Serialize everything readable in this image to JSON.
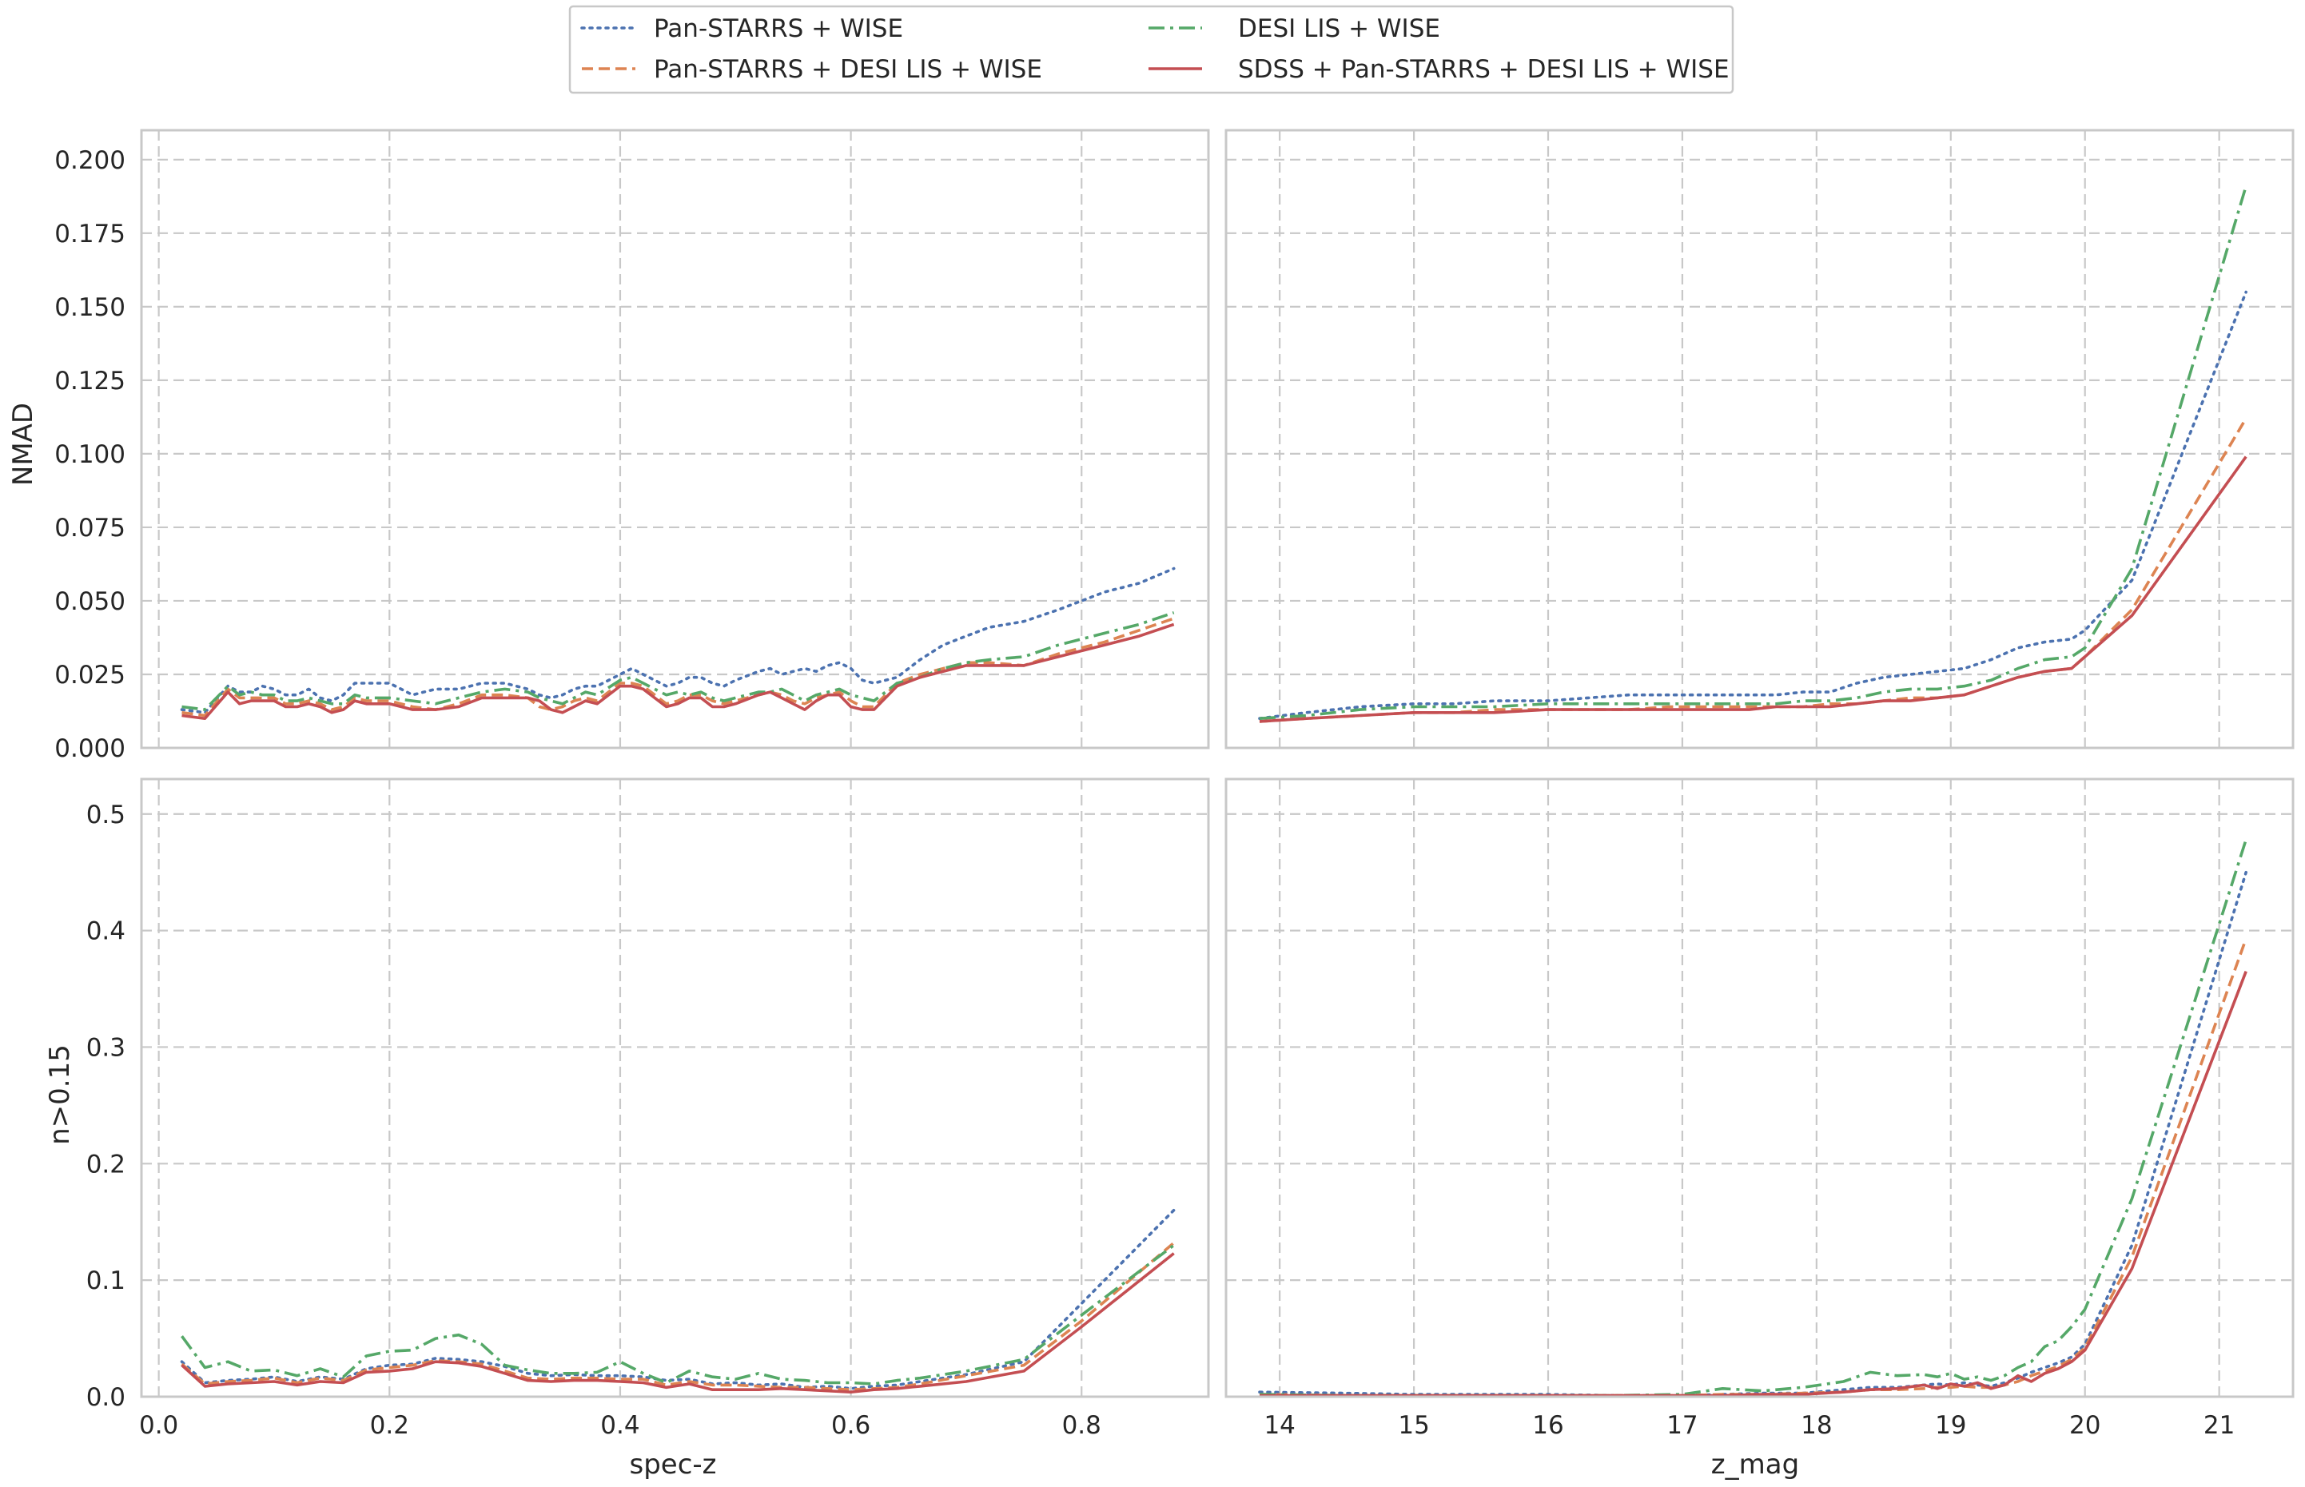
{
  "colors": {
    "ps_wise": "#4c72b0",
    "ps_desi_wise": "#dd8452",
    "desi_wise": "#55a868",
    "all": "#c44e52"
  },
  "legend": [
    {
      "key": "ps_wise",
      "label": "Pan-STARRS + WISE",
      "dash": "dotted"
    },
    {
      "key": "ps_desi_wise",
      "label": "Pan-STARRS + DESI LIS + WISE",
      "dash": "dashed"
    },
    {
      "key": "desi_wise",
      "label": "DESI LIS + WISE",
      "dash": "dashdot"
    },
    {
      "key": "all",
      "label": "SDSS + Pan-STARRS + DESI LIS + WISE",
      "dash": "solid"
    }
  ],
  "chart_data": [
    {
      "type": "line",
      "panel": "top-left",
      "xlabel": "",
      "ylabel": "NMAD",
      "xlim": [
        -0.015,
        0.91
      ],
      "ylim": [
        0,
        0.21
      ],
      "xticks": [
        0.0,
        0.2,
        0.4,
        0.6,
        0.8
      ],
      "yticks": [
        0.0,
        0.025,
        0.05,
        0.075,
        0.1,
        0.125,
        0.15,
        0.175,
        0.2
      ],
      "xtick_labels": [
        "",
        "",
        "",
        "",
        ""
      ],
      "ytick_labels": [
        "0.000",
        "0.025",
        "0.050",
        "0.075",
        "0.100",
        "0.125",
        "0.150",
        "0.175",
        "0.200"
      ],
      "grid": true,
      "x": [
        0.02,
        0.04,
        0.06,
        0.07,
        0.08,
        0.09,
        0.1,
        0.11,
        0.12,
        0.13,
        0.14,
        0.15,
        0.16,
        0.17,
        0.18,
        0.2,
        0.22,
        0.24,
        0.26,
        0.28,
        0.3,
        0.32,
        0.33,
        0.34,
        0.35,
        0.36,
        0.37,
        0.38,
        0.4,
        0.41,
        0.42,
        0.43,
        0.44,
        0.45,
        0.46,
        0.47,
        0.48,
        0.49,
        0.5,
        0.52,
        0.53,
        0.54,
        0.55,
        0.56,
        0.57,
        0.58,
        0.59,
        0.6,
        0.61,
        0.62,
        0.64,
        0.66,
        0.68,
        0.7,
        0.72,
        0.75,
        0.78,
        0.8,
        0.82,
        0.85,
        0.88
      ],
      "series": [
        {
          "name": "Pan-STARRS + WISE",
          "key": "ps_wise",
          "values": [
            0.013,
            0.012,
            0.021,
            0.019,
            0.019,
            0.021,
            0.02,
            0.018,
            0.018,
            0.02,
            0.017,
            0.016,
            0.018,
            0.022,
            0.022,
            0.022,
            0.018,
            0.02,
            0.02,
            0.022,
            0.022,
            0.02,
            0.018,
            0.017,
            0.018,
            0.02,
            0.021,
            0.021,
            0.025,
            0.027,
            0.025,
            0.023,
            0.021,
            0.022,
            0.024,
            0.024,
            0.022,
            0.021,
            0.023,
            0.026,
            0.027,
            0.025,
            0.026,
            0.027,
            0.026,
            0.028,
            0.029,
            0.027,
            0.023,
            0.022,
            0.024,
            0.03,
            0.035,
            0.038,
            0.041,
            0.043,
            0.047,
            0.05,
            0.053,
            0.056,
            0.061
          ]
        },
        {
          "name": "Pan-STARRS + DESI LIS + WISE",
          "key": "ps_desi_wise",
          "values": [
            0.012,
            0.011,
            0.02,
            0.017,
            0.017,
            0.017,
            0.017,
            0.015,
            0.015,
            0.016,
            0.015,
            0.013,
            0.014,
            0.017,
            0.016,
            0.016,
            0.014,
            0.013,
            0.015,
            0.018,
            0.018,
            0.017,
            0.014,
            0.013,
            0.014,
            0.016,
            0.017,
            0.016,
            0.022,
            0.022,
            0.021,
            0.018,
            0.015,
            0.016,
            0.018,
            0.018,
            0.016,
            0.015,
            0.016,
            0.018,
            0.019,
            0.018,
            0.016,
            0.015,
            0.017,
            0.018,
            0.019,
            0.016,
            0.014,
            0.014,
            0.022,
            0.025,
            0.027,
            0.029,
            0.029,
            0.028,
            0.032,
            0.034,
            0.036,
            0.04,
            0.044
          ]
        },
        {
          "name": "DESI LIS + WISE",
          "key": "desi_wise",
          "values": [
            0.014,
            0.013,
            0.021,
            0.018,
            0.019,
            0.018,
            0.018,
            0.016,
            0.016,
            0.017,
            0.016,
            0.015,
            0.015,
            0.018,
            0.017,
            0.017,
            0.016,
            0.015,
            0.017,
            0.019,
            0.02,
            0.019,
            0.017,
            0.016,
            0.015,
            0.017,
            0.019,
            0.018,
            0.023,
            0.024,
            0.022,
            0.02,
            0.018,
            0.019,
            0.018,
            0.019,
            0.017,
            0.016,
            0.017,
            0.019,
            0.019,
            0.02,
            0.018,
            0.016,
            0.018,
            0.019,
            0.02,
            0.018,
            0.017,
            0.016,
            0.022,
            0.024,
            0.027,
            0.029,
            0.03,
            0.031,
            0.035,
            0.037,
            0.039,
            0.042,
            0.046
          ]
        },
        {
          "name": "SDSS + Pan-STARRS + DESI LIS + WISE",
          "key": "all",
          "values": [
            0.011,
            0.01,
            0.019,
            0.015,
            0.016,
            0.016,
            0.016,
            0.014,
            0.014,
            0.015,
            0.014,
            0.012,
            0.013,
            0.016,
            0.015,
            0.015,
            0.013,
            0.013,
            0.014,
            0.017,
            0.017,
            0.017,
            0.016,
            0.013,
            0.012,
            0.014,
            0.016,
            0.015,
            0.021,
            0.021,
            0.02,
            0.017,
            0.014,
            0.015,
            0.017,
            0.017,
            0.014,
            0.014,
            0.015,
            0.018,
            0.019,
            0.017,
            0.015,
            0.013,
            0.016,
            0.018,
            0.018,
            0.014,
            0.013,
            0.013,
            0.021,
            0.024,
            0.026,
            0.028,
            0.028,
            0.028,
            0.031,
            0.033,
            0.035,
            0.038,
            0.042
          ]
        }
      ]
    },
    {
      "type": "line",
      "panel": "top-right",
      "xlabel": "",
      "ylabel": "",
      "xlim": [
        13.6,
        21.55
      ],
      "ylim": [
        0,
        0.21
      ],
      "xticks": [
        14,
        15,
        16,
        17,
        18,
        19,
        20,
        21
      ],
      "yticks": [
        0.0,
        0.025,
        0.05,
        0.075,
        0.1,
        0.125,
        0.15,
        0.175,
        0.2
      ],
      "xtick_labels": [
        "",
        "",
        "",
        "",
        "",
        "",
        "",
        ""
      ],
      "ytick_labels": [
        "",
        "",
        "",
        "",
        "",
        "",
        "",
        "",
        ""
      ],
      "grid": true,
      "x": [
        13.85,
        14.2,
        14.6,
        15.0,
        15.3,
        15.6,
        16.0,
        16.3,
        16.6,
        16.9,
        17.1,
        17.3,
        17.5,
        17.7,
        17.9,
        18.1,
        18.3,
        18.5,
        18.7,
        18.9,
        19.1,
        19.3,
        19.5,
        19.7,
        19.9,
        20.0,
        20.35,
        21.2
      ],
      "series": [
        {
          "name": "Pan-STARRS + WISE",
          "key": "ps_wise",
          "values": [
            0.01,
            0.012,
            0.014,
            0.015,
            0.015,
            0.016,
            0.016,
            0.017,
            0.018,
            0.018,
            0.018,
            0.018,
            0.018,
            0.018,
            0.019,
            0.019,
            0.022,
            0.024,
            0.025,
            0.026,
            0.027,
            0.03,
            0.034,
            0.036,
            0.037,
            0.04,
            0.057,
            0.155
          ]
        },
        {
          "name": "Pan-STARRS + DESI LIS + WISE",
          "key": "ps_desi_wise",
          "values": [
            0.009,
            0.01,
            0.011,
            0.012,
            0.012,
            0.013,
            0.013,
            0.013,
            0.013,
            0.014,
            0.014,
            0.014,
            0.014,
            0.014,
            0.014,
            0.015,
            0.015,
            0.016,
            0.017,
            0.017,
            0.018,
            0.021,
            0.024,
            0.026,
            0.027,
            0.031,
            0.047,
            0.112
          ]
        },
        {
          "name": "DESI LIS + WISE",
          "key": "desi_wise",
          "values": [
            0.01,
            0.011,
            0.013,
            0.014,
            0.014,
            0.014,
            0.015,
            0.015,
            0.015,
            0.015,
            0.015,
            0.015,
            0.015,
            0.015,
            0.016,
            0.016,
            0.017,
            0.019,
            0.02,
            0.02,
            0.021,
            0.023,
            0.027,
            0.03,
            0.031,
            0.034,
            0.061,
            0.191
          ]
        },
        {
          "name": "SDSS + Pan-STARRS + DESI LIS + WISE",
          "key": "all",
          "values": [
            0.009,
            0.01,
            0.011,
            0.012,
            0.012,
            0.012,
            0.013,
            0.013,
            0.013,
            0.013,
            0.013,
            0.013,
            0.013,
            0.014,
            0.014,
            0.014,
            0.015,
            0.016,
            0.016,
            0.017,
            0.018,
            0.021,
            0.024,
            0.026,
            0.027,
            0.031,
            0.045,
            0.099
          ]
        }
      ]
    },
    {
      "type": "line",
      "panel": "bottom-left",
      "xlabel": "spec-z",
      "ylabel": "n>0.15",
      "xlim": [
        -0.015,
        0.91
      ],
      "ylim": [
        0,
        0.53
      ],
      "xticks": [
        0.0,
        0.2,
        0.4,
        0.6,
        0.8
      ],
      "yticks": [
        0.0,
        0.1,
        0.2,
        0.3,
        0.4,
        0.5
      ],
      "xtick_labels": [
        "0.0",
        "0.2",
        "0.4",
        "0.6",
        "0.8"
      ],
      "ytick_labels": [
        "0.0",
        "0.1",
        "0.2",
        "0.3",
        "0.4",
        "0.5"
      ],
      "grid": true,
      "x": [
        0.02,
        0.04,
        0.06,
        0.08,
        0.1,
        0.12,
        0.14,
        0.16,
        0.18,
        0.2,
        0.22,
        0.24,
        0.26,
        0.28,
        0.3,
        0.32,
        0.34,
        0.36,
        0.38,
        0.4,
        0.42,
        0.44,
        0.46,
        0.48,
        0.5,
        0.52,
        0.54,
        0.56,
        0.58,
        0.6,
        0.62,
        0.64,
        0.66,
        0.7,
        0.75,
        0.8,
        0.88
      ],
      "series": [
        {
          "name": "Pan-STARRS + WISE",
          "key": "ps_wise",
          "values": [
            0.03,
            0.012,
            0.014,
            0.015,
            0.017,
            0.013,
            0.017,
            0.015,
            0.024,
            0.027,
            0.028,
            0.033,
            0.032,
            0.03,
            0.026,
            0.02,
            0.018,
            0.019,
            0.018,
            0.018,
            0.017,
            0.014,
            0.015,
            0.011,
            0.012,
            0.01,
            0.011,
            0.008,
            0.009,
            0.007,
            0.009,
            0.01,
            0.013,
            0.019,
            0.03,
            0.08,
            0.16
          ]
        },
        {
          "name": "Pan-STARRS + DESI LIS + WISE",
          "key": "ps_desi_wise",
          "values": [
            0.028,
            0.011,
            0.013,
            0.014,
            0.016,
            0.012,
            0.016,
            0.014,
            0.023,
            0.025,
            0.027,
            0.031,
            0.03,
            0.028,
            0.022,
            0.016,
            0.015,
            0.016,
            0.016,
            0.015,
            0.015,
            0.01,
            0.013,
            0.01,
            0.01,
            0.009,
            0.008,
            0.008,
            0.007,
            0.006,
            0.007,
            0.008,
            0.011,
            0.018,
            0.027,
            0.065,
            0.132
          ]
        },
        {
          "name": "DESI LIS + WISE",
          "key": "desi_wise",
          "values": [
            0.052,
            0.025,
            0.03,
            0.022,
            0.023,
            0.018,
            0.024,
            0.017,
            0.035,
            0.039,
            0.04,
            0.05,
            0.053,
            0.045,
            0.027,
            0.023,
            0.02,
            0.02,
            0.021,
            0.03,
            0.02,
            0.012,
            0.022,
            0.017,
            0.015,
            0.02,
            0.015,
            0.014,
            0.012,
            0.012,
            0.011,
            0.014,
            0.016,
            0.022,
            0.032,
            0.07,
            0.13
          ]
        },
        {
          "name": "SDSS + Pan-STARRS + DESI LIS + WISE",
          "key": "all",
          "values": [
            0.027,
            0.009,
            0.011,
            0.012,
            0.013,
            0.01,
            0.013,
            0.012,
            0.021,
            0.022,
            0.024,
            0.03,
            0.029,
            0.026,
            0.02,
            0.014,
            0.013,
            0.014,
            0.014,
            0.013,
            0.012,
            0.008,
            0.011,
            0.006,
            0.006,
            0.006,
            0.007,
            0.006,
            0.005,
            0.004,
            0.006,
            0.007,
            0.009,
            0.013,
            0.022,
            0.06,
            0.123
          ]
        }
      ]
    },
    {
      "type": "line",
      "panel": "bottom-right",
      "xlabel": "z_mag",
      "ylabel": "",
      "xlim": [
        13.6,
        21.55
      ],
      "ylim": [
        0,
        0.53
      ],
      "xticks": [
        14,
        15,
        16,
        17,
        18,
        19,
        20,
        21
      ],
      "yticks": [
        0.0,
        0.1,
        0.2,
        0.3,
        0.4,
        0.5
      ],
      "xtick_labels": [
        "14",
        "15",
        "16",
        "17",
        "18",
        "19",
        "20",
        "21"
      ],
      "ytick_labels": [
        "",
        "",
        "",
        "",
        "",
        ""
      ],
      "grid": true,
      "x": [
        13.85,
        14.5,
        15.0,
        15.5,
        16.0,
        16.5,
        17.0,
        17.3,
        17.6,
        17.9,
        18.2,
        18.4,
        18.6,
        18.8,
        18.9,
        19.0,
        19.1,
        19.2,
        19.3,
        19.4,
        19.5,
        19.6,
        19.7,
        19.8,
        19.9,
        20.0,
        20.35,
        21.2
      ],
      "series": [
        {
          "name": "Pan-STARRS + WISE",
          "key": "ps_wise",
          "values": [
            0.004,
            0.003,
            0.002,
            0.002,
            0.002,
            0.001,
            0.001,
            0.002,
            0.003,
            0.003,
            0.006,
            0.008,
            0.008,
            0.01,
            0.011,
            0.01,
            0.012,
            0.01,
            0.009,
            0.012,
            0.016,
            0.021,
            0.025,
            0.029,
            0.034,
            0.045,
            0.13,
            0.45
          ]
        },
        {
          "name": "Pan-STARRS + DESI LIS + WISE",
          "key": "ps_desi_wise",
          "values": [
            0.002,
            0.001,
            0.001,
            0.001,
            0.001,
            0.001,
            0.001,
            0.002,
            0.002,
            0.003,
            0.004,
            0.006,
            0.006,
            0.007,
            0.008,
            0.008,
            0.009,
            0.008,
            0.008,
            0.01,
            0.013,
            0.018,
            0.022,
            0.026,
            0.032,
            0.042,
            0.12,
            0.393
          ]
        },
        {
          "name": "DESI LIS + WISE",
          "key": "desi_wise",
          "values": [
            0.002,
            0.001,
            0.001,
            0.001,
            0.001,
            0.001,
            0.002,
            0.007,
            0.005,
            0.008,
            0.013,
            0.021,
            0.018,
            0.019,
            0.017,
            0.02,
            0.015,
            0.017,
            0.014,
            0.018,
            0.025,
            0.03,
            0.043,
            0.048,
            0.06,
            0.075,
            0.17,
            0.478
          ]
        },
        {
          "name": "SDSS + Pan-STARRS + DESI LIS + WISE",
          "key": "all",
          "values": [
            0.001,
            0.001,
            0.001,
            0.001,
            0.001,
            0.001,
            0.001,
            0.001,
            0.002,
            0.002,
            0.004,
            0.006,
            0.007,
            0.01,
            0.007,
            0.011,
            0.009,
            0.012,
            0.007,
            0.01,
            0.018,
            0.013,
            0.02,
            0.024,
            0.03,
            0.04,
            0.11,
            0.365
          ]
        }
      ]
    }
  ]
}
